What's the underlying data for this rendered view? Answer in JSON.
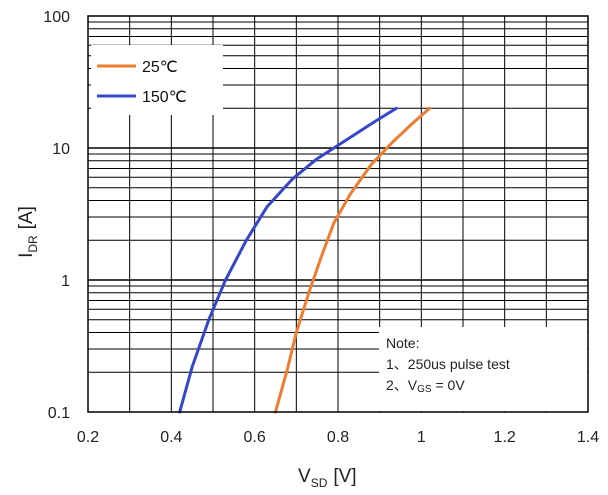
{
  "chart_data": {
    "type": "line",
    "xlabel_main": "V",
    "xlabel_sub": "SD",
    "xlabel_unit": "[V]",
    "ylabel_main": "I",
    "ylabel_sub": "DR",
    "ylabel_unit": "[A]",
    "xlim": [
      0.2,
      1.4
    ],
    "ylim": [
      0.1,
      100
    ],
    "yscale": "log",
    "xticks": [
      0.2,
      0.4,
      0.6,
      0.8,
      1,
      1.2,
      1.4
    ],
    "xtick_labels": [
      "0.2",
      "0.4",
      "0.6",
      "0.8",
      "1",
      "1.2",
      "1.4"
    ],
    "yticks": [
      0.1,
      1,
      10,
      100
    ],
    "ytick_labels": [
      "0.1",
      "1",
      "10",
      "100"
    ],
    "grid": true,
    "legend_position": "top-left",
    "series": [
      {
        "name": "25℃",
        "color": "#ed7d31",
        "x": [
          0.65,
          0.68,
          0.7,
          0.73,
          0.76,
          0.79,
          0.83,
          0.88,
          0.93,
          0.98,
          1.02
        ],
        "y": [
          0.1,
          0.22,
          0.4,
          0.8,
          1.5,
          2.7,
          4.5,
          7.5,
          11,
          15.5,
          20
        ]
      },
      {
        "name": "150℃",
        "color": "#3447c8",
        "x": [
          0.42,
          0.45,
          0.49,
          0.53,
          0.58,
          0.63,
          0.69,
          0.75,
          0.82,
          0.89,
          0.94
        ],
        "y": [
          0.1,
          0.22,
          0.5,
          1.0,
          2.0,
          3.6,
          5.8,
          8.3,
          11.5,
          16,
          20
        ]
      }
    ],
    "annotation": {
      "title": "Note:",
      "line1": "1、250us pulse test",
      "line2_prefix": "2、V",
      "line2_sub": "GS",
      "line2_suffix": " = 0V"
    }
  }
}
